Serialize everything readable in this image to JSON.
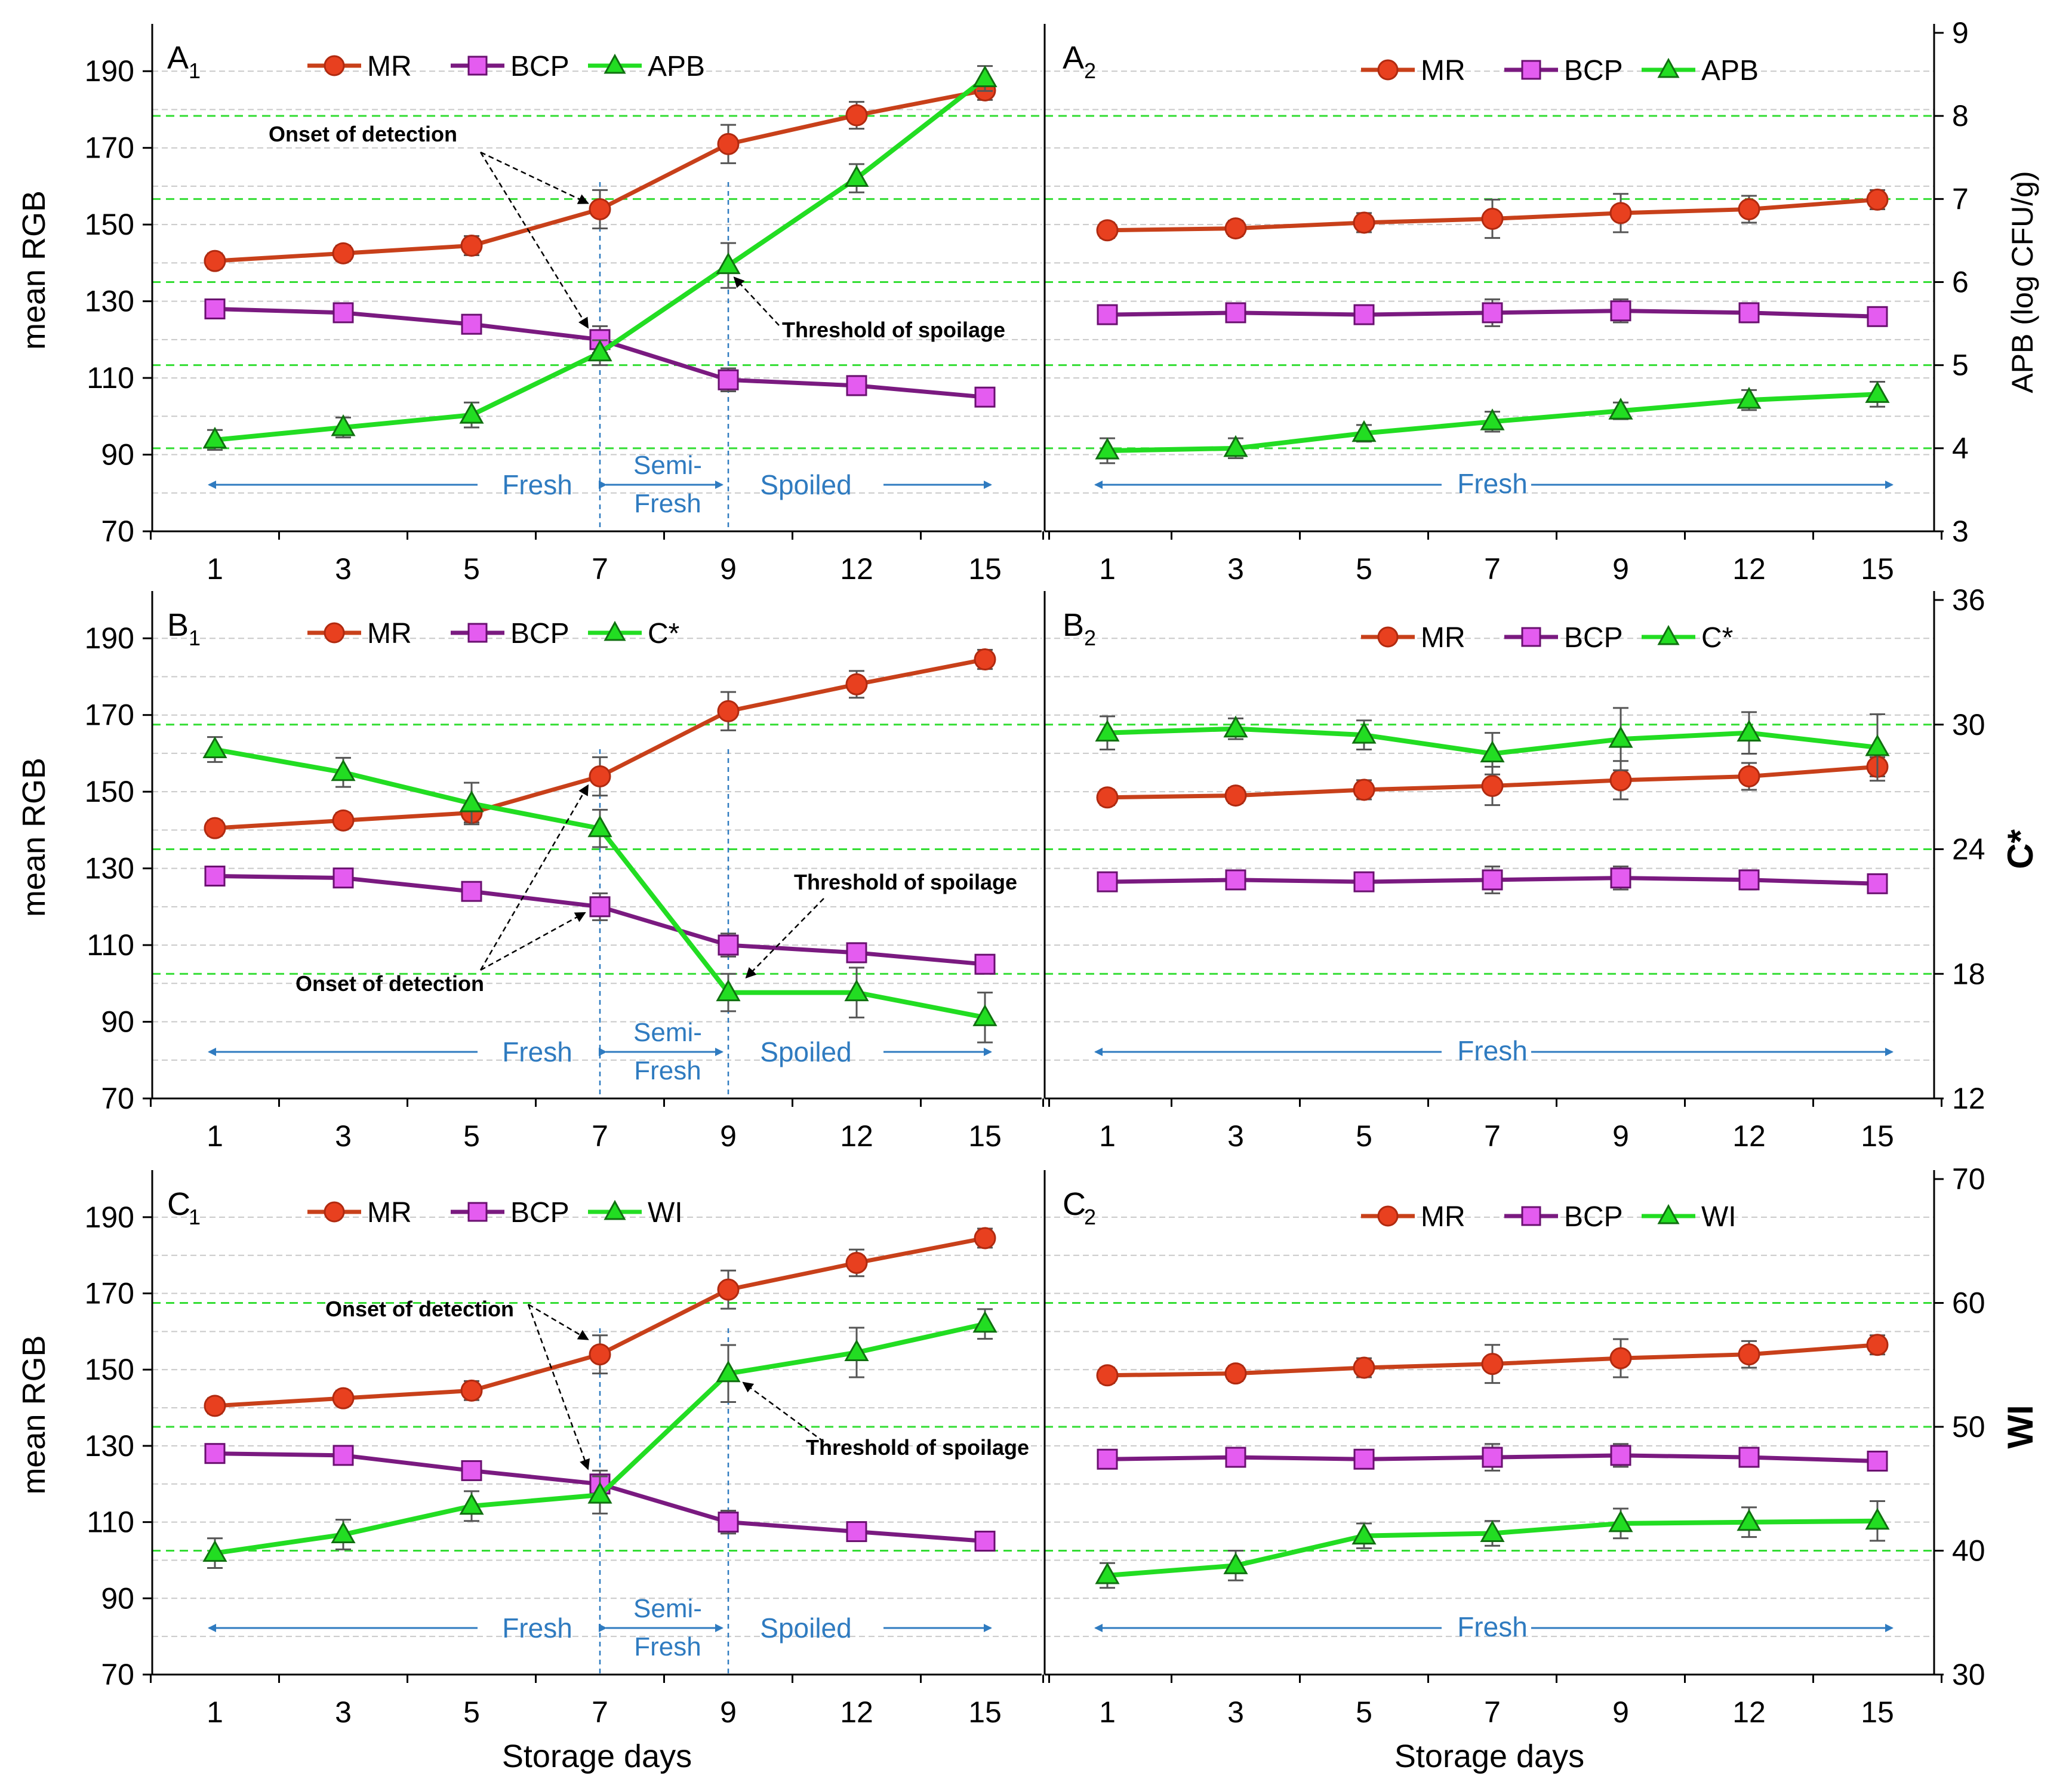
{
  "figure": {
    "y_left_label": "mean RGB",
    "x_label": "Storage days",
    "x_categories": [
      "1",
      "3",
      "5",
      "7",
      "9",
      "12",
      "15"
    ],
    "left_ticks": [
      "70",
      "90",
      "110",
      "130",
      "150",
      "170",
      "190"
    ],
    "colors": {
      "MR": "#e8401f",
      "MR_line": "#c8401a",
      "BCP": "#e45cf0",
      "BCP_line": "#7a1a80",
      "third": "#22dd22",
      "ref": "#33dd33",
      "arrow": "#2f7bc0",
      "stage_text": "#2f7bc0"
    },
    "markers": {
      "MR": "circle",
      "BCP": "square",
      "third": "triangle"
    }
  },
  "chart_data": [
    {
      "id": "A1",
      "type": "line",
      "panel_letter": "A",
      "panel_sub": "1",
      "ylabel": "mean RGB",
      "ylim": [
        70,
        200
      ],
      "legend": [
        "MR",
        "BCP",
        "APB"
      ],
      "categories": [
        "1",
        "3",
        "5",
        "7",
        "9",
        "12",
        "15"
      ],
      "series": [
        {
          "name": "MR",
          "values": [
            140.5,
            142.5,
            144.5,
            154,
            171,
            178.5,
            185
          ],
          "err": [
            2,
            2,
            2.5,
            5,
            5,
            3.5,
            2.5
          ]
        },
        {
          "name": "BCP",
          "values": [
            128,
            127,
            124,
            120,
            109.5,
            108,
            105
          ],
          "err": [
            2,
            2,
            2,
            3.5,
            3,
            2.5,
            2
          ]
        },
        {
          "name": "APB",
          "axis": "right",
          "values": [
            4.1,
            4.25,
            4.4,
            5.15,
            6.2,
            7.25,
            8.45
          ],
          "err": [
            0.12,
            0.12,
            0.15,
            0.15,
            0.27,
            0.17,
            0.15
          ]
        }
      ],
      "right_axis": {
        "label": "APB (log CFU/g)",
        "range": [
          3,
          9
        ],
        "ticks": [
          "3",
          "4",
          "5",
          "6",
          "7",
          "8",
          "9"
        ]
      },
      "right_ref_lines": [
        4,
        5,
        6,
        7,
        8
      ],
      "stage_lines": [
        "7",
        "9"
      ],
      "stages": [
        "Fresh",
        "Semi-",
        "Fresh",
        "Spoiled"
      ],
      "annotations": [
        "Onset of detection",
        "Threshold of spoilage"
      ]
    },
    {
      "id": "A2",
      "type": "line",
      "panel_letter": "A",
      "panel_sub": "2",
      "ylim": [
        70,
        200
      ],
      "legend": [
        "MR",
        "BCP",
        "APB"
      ],
      "categories": [
        "1",
        "3",
        "5",
        "7",
        "9",
        "12",
        "15"
      ],
      "series": [
        {
          "name": "MR",
          "values": [
            148.5,
            149,
            150.5,
            151.5,
            153,
            154,
            156.5
          ],
          "err": [
            2,
            2,
            2.5,
            5,
            5,
            3.5,
            2.5
          ]
        },
        {
          "name": "BCP",
          "values": [
            126.5,
            127,
            126.5,
            127,
            127.5,
            127,
            126
          ],
          "err": [
            2,
            2,
            2,
            3.5,
            3,
            2.5,
            2
          ]
        },
        {
          "name": "APB",
          "axis": "right",
          "values": [
            3.97,
            4.0,
            4.18,
            4.32,
            4.45,
            4.58,
            4.65
          ],
          "err": [
            0.15,
            0.12,
            0.1,
            0.12,
            0.1,
            0.12,
            0.15
          ]
        }
      ],
      "right_axis": {
        "label": "APB (log CFU/g)",
        "range": [
          3,
          9
        ],
        "ticks": [
          "3",
          "4",
          "5",
          "6",
          "7",
          "8",
          "9"
        ]
      },
      "right_ref_lines": [
        4,
        5,
        6,
        7,
        8
      ],
      "stage_lines": [],
      "stages": [
        "Fresh"
      ],
      "annotations": []
    },
    {
      "id": "B1",
      "type": "line",
      "panel_letter": "B",
      "panel_sub": "1",
      "ylabel": "mean RGB",
      "ylim": [
        70,
        200
      ],
      "legend": [
        "MR",
        "BCP",
        "C*"
      ],
      "categories": [
        "1",
        "3",
        "5",
        "7",
        "9",
        "12",
        "15"
      ],
      "series": [
        {
          "name": "MR",
          "values": [
            140.5,
            142.5,
            144.5,
            154,
            171,
            178,
            184.5
          ],
          "err": [
            2,
            2,
            2.5,
            5,
            5,
            3.5,
            2.5
          ]
        },
        {
          "name": "BCP",
          "values": [
            128,
            127.5,
            124,
            120,
            110,
            108,
            105
          ],
          "err": [
            2,
            2,
            2,
            3.5,
            3,
            2.5,
            2
          ]
        },
        {
          "name": "C*",
          "axis": "right",
          "values": [
            28.8,
            27.7,
            26.2,
            25.0,
            17.1,
            17.1,
            15.9
          ],
          "err": [
            0.6,
            0.7,
            1.0,
            0.9,
            0.9,
            1.2,
            1.2
          ]
        }
      ],
      "right_axis": {
        "label": "C*",
        "range": [
          12,
          36
        ],
        "ticks": [
          "12",
          "18",
          "24",
          "30",
          "36"
        ]
      },
      "right_ref_lines": [
        18,
        24,
        30
      ],
      "stage_lines": [
        "7",
        "9"
      ],
      "stages": [
        "Fresh",
        "Semi-",
        "Fresh",
        "Spoiled"
      ],
      "annotations": [
        "Onset of detection",
        "Threshold of spoilage"
      ]
    },
    {
      "id": "B2",
      "type": "line",
      "panel_letter": "B",
      "panel_sub": "2",
      "ylim": [
        70,
        200
      ],
      "legend": [
        "MR",
        "BCP",
        "C*"
      ],
      "categories": [
        "1",
        "3",
        "5",
        "7",
        "9",
        "12",
        "15"
      ],
      "series": [
        {
          "name": "MR",
          "values": [
            148.5,
            149,
            150.5,
            151.5,
            153,
            154,
            156.5
          ],
          "err": [
            2,
            2,
            2.5,
            5,
            5,
            3.5,
            2.5
          ]
        },
        {
          "name": "BCP",
          "values": [
            126.5,
            127,
            126.5,
            127,
            127.5,
            127,
            126
          ],
          "err": [
            2,
            2,
            2,
            3.5,
            3,
            2.5,
            2
          ]
        },
        {
          "name": "C*",
          "axis": "right",
          "values": [
            29.6,
            29.8,
            29.5,
            28.6,
            29.3,
            29.6,
            28.9
          ],
          "err": [
            0.8,
            0.5,
            0.7,
            1.0,
            1.5,
            1.0,
            1.6
          ]
        }
      ],
      "right_axis": {
        "label": "C*",
        "range": [
          12,
          36
        ],
        "ticks": [
          "12",
          "18",
          "24",
          "30",
          "36"
        ]
      },
      "right_ref_lines": [
        18,
        24,
        30
      ],
      "stage_lines": [],
      "stages": [
        "Fresh"
      ],
      "annotations": []
    },
    {
      "id": "C1",
      "type": "line",
      "panel_letter": "C",
      "panel_sub": "1",
      "ylabel": "mean RGB",
      "ylim": [
        70,
        200
      ],
      "legend": [
        "MR",
        "BCP",
        "WI"
      ],
      "categories": [
        "1",
        "3",
        "5",
        "7",
        "9",
        "12",
        "15"
      ],
      "series": [
        {
          "name": "MR",
          "values": [
            140.5,
            142.5,
            144.5,
            154,
            171,
            178,
            184.5
          ],
          "err": [
            2,
            2,
            2.5,
            5,
            5,
            3.5,
            2.5
          ]
        },
        {
          "name": "BCP",
          "values": [
            128,
            127.5,
            123.5,
            120,
            110,
            107.5,
            105
          ],
          "err": [
            2,
            2,
            2,
            3.5,
            3,
            2.5,
            2
          ]
        },
        {
          "name": "WI",
          "axis": "right",
          "values": [
            39.8,
            41.3,
            43.6,
            44.5,
            54.3,
            56.0,
            58.3
          ],
          "err": [
            1.2,
            1.2,
            1.2,
            1.5,
            2.3,
            2.0,
            1.2
          ]
        }
      ],
      "right_axis": {
        "label": "WI",
        "range": [
          30,
          70
        ],
        "ticks": [
          "30",
          "40",
          "50",
          "60",
          "70"
        ]
      },
      "right_ref_lines": [
        40,
        50,
        60
      ],
      "stage_lines": [
        "7",
        "9"
      ],
      "stages": [
        "Fresh",
        "Semi-",
        "Fresh",
        "Spoiled"
      ],
      "annotations": [
        "Onset of detection",
        "Threshold of spoilage"
      ]
    },
    {
      "id": "C2",
      "type": "line",
      "panel_letter": "C",
      "panel_sub": "2",
      "ylim": [
        70,
        200
      ],
      "legend": [
        "MR",
        "BCP",
        "WI"
      ],
      "categories": [
        "1",
        "3",
        "5",
        "7",
        "9",
        "12",
        "15"
      ],
      "series": [
        {
          "name": "MR",
          "values": [
            148.5,
            149,
            150.5,
            151.5,
            153,
            154,
            156.5
          ],
          "err": [
            2,
            2,
            2.5,
            5,
            5,
            3.5,
            2.5
          ]
        },
        {
          "name": "BCP",
          "values": [
            126.5,
            127,
            126.5,
            127,
            127.5,
            127,
            126
          ],
          "err": [
            2,
            2,
            2,
            3.5,
            3,
            2.5,
            2
          ]
        },
        {
          "name": "WI",
          "axis": "right",
          "values": [
            38.0,
            38.8,
            41.2,
            41.4,
            42.2,
            42.3,
            42.4
          ],
          "err": [
            1.0,
            1.2,
            1.0,
            1.0,
            1.2,
            1.2,
            1.6
          ]
        }
      ],
      "right_axis": {
        "label": "WI",
        "range": [
          30,
          70
        ],
        "ticks": [
          "30",
          "40",
          "50",
          "60",
          "70"
        ]
      },
      "right_ref_lines": [
        40,
        50,
        60
      ],
      "stage_lines": [],
      "stages": [
        "Fresh"
      ],
      "annotations": []
    }
  ]
}
